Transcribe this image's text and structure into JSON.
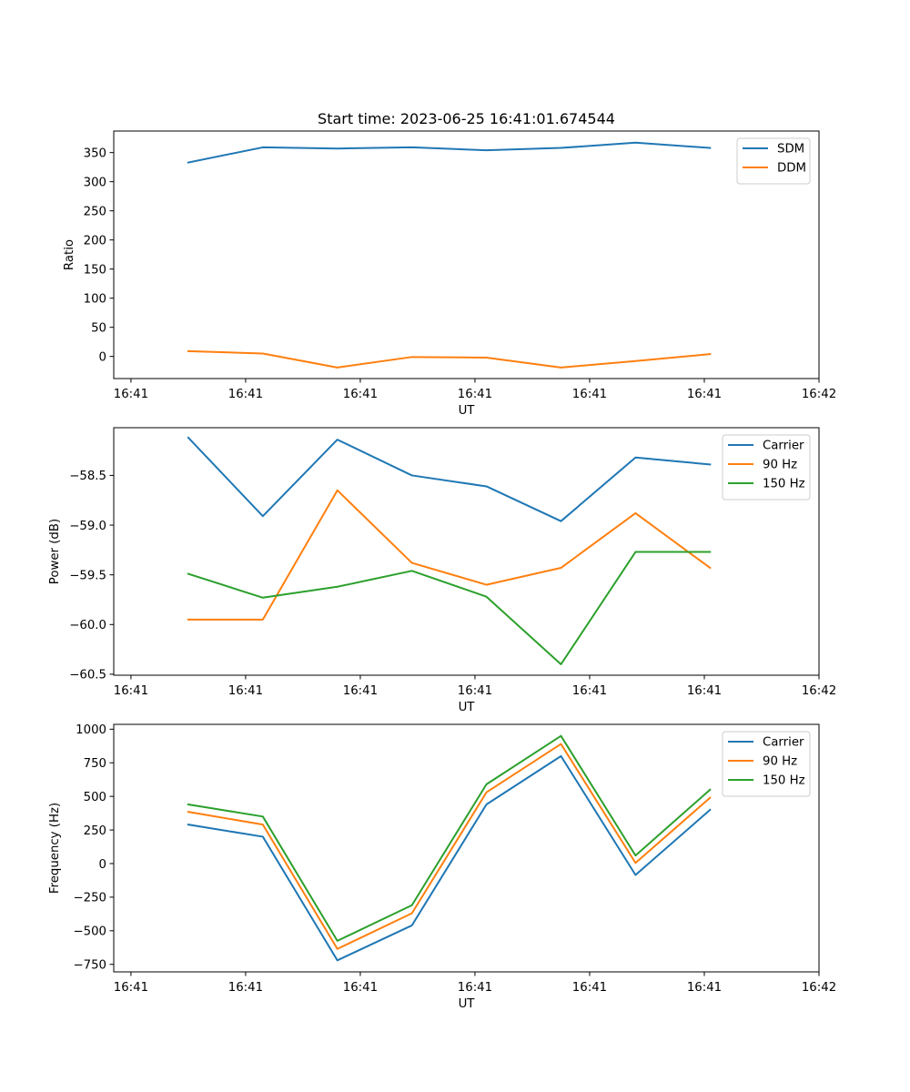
{
  "figure": {
    "title": "Start time: 2023-06-25 16:41:01.674544"
  },
  "chart_data": [
    {
      "type": "line",
      "title": "Start time: 2023-06-25 16:41:01.674544",
      "xlabel": "UT",
      "ylabel": "Ratio",
      "x_tick_labels": [
        "16:41",
        "16:41",
        "16:41",
        "16:41",
        "16:41",
        "16:41",
        "16:42"
      ],
      "x_tick_values": [
        0,
        1,
        2,
        3,
        4,
        5,
        6
      ],
      "xlim": [
        -0.15,
        6.0
      ],
      "y_tick_values": [
        0,
        50,
        100,
        150,
        200,
        250,
        300,
        350
      ],
      "y_tick_labels": [
        "0",
        "50",
        "100",
        "150",
        "200",
        "250",
        "300",
        "350"
      ],
      "ylim": [
        -38,
        387
      ],
      "legend": "upper right",
      "x": [
        0.5,
        1.15,
        1.8,
        2.45,
        3.1,
        3.75,
        4.4,
        5.05
      ],
      "series": [
        {
          "name": "SDM",
          "color": "#1f77b4",
          "values": [
            333,
            359,
            357,
            359,
            354,
            358,
            367,
            358
          ]
        },
        {
          "name": "DDM",
          "color": "#ff7f0e",
          "values": [
            9,
            5,
            -19,
            -1,
            -2,
            -19,
            -8,
            4
          ]
        }
      ]
    },
    {
      "type": "line",
      "title": "",
      "xlabel": "UT",
      "ylabel": "Power (dB)",
      "x_tick_labels": [
        "16:41",
        "16:41",
        "16:41",
        "16:41",
        "16:41",
        "16:41",
        "16:42"
      ],
      "x_tick_values": [
        0,
        1,
        2,
        3,
        4,
        5,
        6
      ],
      "xlim": [
        -0.15,
        6.0
      ],
      "y_tick_values": [
        -60.5,
        -60.0,
        -59.5,
        -59.0,
        -58.5
      ],
      "y_tick_labels": [
        "−60.5",
        "−60.0",
        "−59.5",
        "−59.0",
        "−58.5"
      ],
      "ylim": [
        -60.51,
        -58.02
      ],
      "legend": "upper right",
      "x": [
        0.5,
        1.15,
        1.8,
        2.45,
        3.1,
        3.75,
        4.4,
        5.05
      ],
      "series": [
        {
          "name": "Carrier",
          "color": "#1f77b4",
          "values": [
            -58.12,
            -58.91,
            -58.14,
            -58.5,
            -58.61,
            -58.96,
            -58.32,
            -58.39
          ]
        },
        {
          "name": "90 Hz",
          "color": "#ff7f0e",
          "values": [
            -59.95,
            -59.95,
            -58.65,
            -59.38,
            -59.6,
            -59.43,
            -58.88,
            -59.43
          ]
        },
        {
          "name": "150 Hz",
          "color": "#2ca02c",
          "values": [
            -59.49,
            -59.73,
            -59.62,
            -59.46,
            -59.72,
            -60.4,
            -59.27,
            -59.27
          ]
        }
      ]
    },
    {
      "type": "line",
      "title": "",
      "xlabel": "UT",
      "ylabel": "Frequency (Hz)",
      "x_tick_labels": [
        "16:41",
        "16:41",
        "16:41",
        "16:41",
        "16:41",
        "16:41",
        "16:42"
      ],
      "x_tick_values": [
        0,
        1,
        2,
        3,
        4,
        5,
        6
      ],
      "xlim": [
        -0.15,
        6.0
      ],
      "y_tick_values": [
        -750,
        -500,
        -250,
        0,
        250,
        500,
        750,
        1000
      ],
      "y_tick_labels": [
        "−750",
        "−500",
        "−250",
        "0",
        "250",
        "500",
        "750",
        "1000"
      ],
      "ylim": [
        -806,
        1036
      ],
      "legend": "upper right",
      "x": [
        0.5,
        1.15,
        1.8,
        2.45,
        3.1,
        3.75,
        4.4,
        5.05
      ],
      "series": [
        {
          "name": "Carrier",
          "color": "#1f77b4",
          "values": [
            290,
            200,
            -720,
            -460,
            440,
            800,
            -85,
            400
          ]
        },
        {
          "name": "90 Hz",
          "color": "#ff7f0e",
          "values": [
            385,
            290,
            -635,
            -370,
            530,
            890,
            5,
            490
          ]
        },
        {
          "name": "150 Hz",
          "color": "#2ca02c",
          "values": [
            440,
            350,
            -575,
            -310,
            590,
            950,
            60,
            550
          ]
        }
      ]
    }
  ]
}
